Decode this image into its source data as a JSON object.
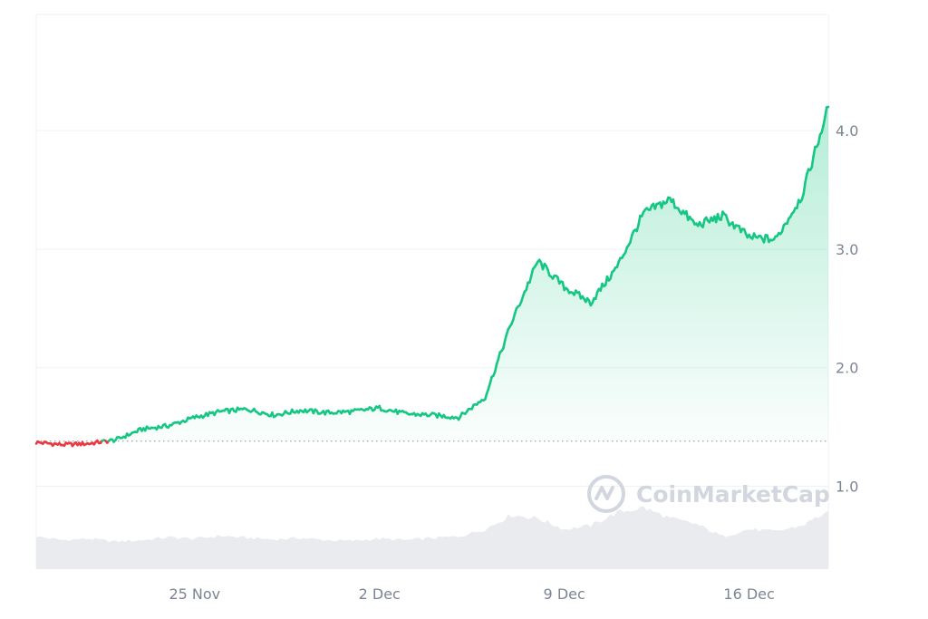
{
  "chart_data": {
    "type": "line",
    "title": "",
    "xlabel": "",
    "ylabel": "",
    "x_ticks": [
      "25 Nov",
      "2 Dec",
      "9 Dec",
      "16 Dec"
    ],
    "y_ticks": [
      "1.0",
      "2.0",
      "3.0",
      "4.0"
    ],
    "ylim": [
      0.3,
      4.98
    ],
    "x_range": [
      "2024-11-19",
      "2024-12-19"
    ],
    "reference_price": 1.38,
    "grid": true,
    "legend": "none",
    "watermark": "CoinMarketCap",
    "colors": {
      "up": "#16c784",
      "down": "#ea3943",
      "volume": "#e6e8ec",
      "grid": "#eff2f5"
    },
    "series": [
      {
        "x": [
          "2024-11-19",
          "2024-11-20",
          "2024-11-21",
          "2024-11-22",
          "2024-11-23",
          "2024-11-24",
          "2024-11-25",
          "2024-11-26",
          "2024-11-27",
          "2024-11-28",
          "2024-11-29",
          "2024-11-30",
          "2024-12-01",
          "2024-12-02",
          "2024-12-03",
          "2024-12-04",
          "2024-12-05",
          "2024-12-06",
          "2024-12-07",
          "2024-12-08",
          "2024-12-09",
          "2024-12-10",
          "2024-12-11",
          "2024-12-12",
          "2024-12-13",
          "2024-12-14",
          "2024-12-15",
          "2024-12-16",
          "2024-12-17",
          "2024-12-18",
          "2024-12-19"
        ],
        "values": [
          1.37,
          1.35,
          1.36,
          1.39,
          1.48,
          1.51,
          1.58,
          1.63,
          1.65,
          1.6,
          1.64,
          1.62,
          1.63,
          1.66,
          1.61,
          1.6,
          1.58,
          1.75,
          2.38,
          2.9,
          2.68,
          2.55,
          2.85,
          3.3,
          3.42,
          3.2,
          3.28,
          3.1,
          3.08,
          3.45,
          4.2
        ]
      }
    ],
    "volume": [
      0.45,
      0.4,
      0.42,
      0.38,
      0.4,
      0.44,
      0.42,
      0.46,
      0.43,
      0.41,
      0.43,
      0.4,
      0.39,
      0.42,
      0.4,
      0.43,
      0.45,
      0.55,
      0.75,
      0.7,
      0.55,
      0.6,
      0.78,
      0.85,
      0.7,
      0.62,
      0.45,
      0.55,
      0.52,
      0.6,
      0.8
    ]
  }
}
